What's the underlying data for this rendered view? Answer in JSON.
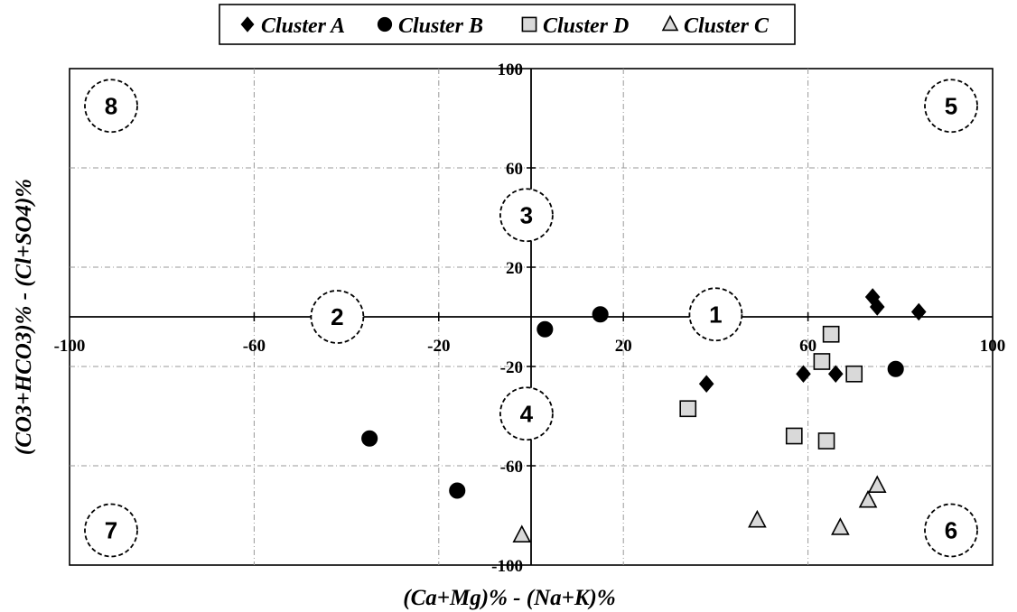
{
  "chart_data": {
    "type": "scatter",
    "xlabel": "(Ca+Mg)% - (Na+K)%",
    "ylabel": "(CO3+HCO3)% - (Cl+SO4)%",
    "xlim": [
      -100,
      100
    ],
    "ylim": [
      -100,
      100
    ],
    "x_ticks": [
      -100,
      -60,
      -20,
      20,
      60,
      100
    ],
    "y_ticks": [
      100,
      60,
      20,
      -20,
      -60,
      -100
    ],
    "grid": true,
    "legend_position": "top-center",
    "zones": [
      {
        "label": "1",
        "x": 40,
        "y": 1
      },
      {
        "label": "2",
        "x": -42,
        "y": 0
      },
      {
        "label": "3",
        "x": -1,
        "y": 41
      },
      {
        "label": "4",
        "x": -1,
        "y": -39
      },
      {
        "label": "5",
        "x": 91,
        "y": 85
      },
      {
        "label": "6",
        "x": 91,
        "y": -86
      },
      {
        "label": "7",
        "x": -91,
        "y": -86
      },
      {
        "label": "8",
        "x": -91,
        "y": 85
      }
    ],
    "series": [
      {
        "name": "Cluster A",
        "marker": "diamond",
        "color": "#000000",
        "points": [
          [
            74,
            8
          ],
          [
            75,
            4
          ],
          [
            84,
            2
          ],
          [
            38,
            -27
          ],
          [
            59,
            -23
          ],
          [
            66,
            -23
          ]
        ]
      },
      {
        "name": "Cluster B",
        "marker": "circle",
        "color": "#000000",
        "points": [
          [
            15,
            1
          ],
          [
            3,
            -5
          ],
          [
            -35,
            -49
          ],
          [
            -16,
            -70
          ],
          [
            79,
            -21
          ]
        ]
      },
      {
        "name": "Cluster D",
        "marker": "square",
        "color": "#d9d9d9",
        "points": [
          [
            65,
            -7
          ],
          [
            63,
            -18
          ],
          [
            70,
            -23
          ],
          [
            34,
            -37
          ],
          [
            57,
            -48
          ],
          [
            64,
            -50
          ]
        ]
      },
      {
        "name": "Cluster C",
        "marker": "triangle",
        "color": "#d9d9d9",
        "points": [
          [
            -2,
            -88
          ],
          [
            49,
            -82
          ],
          [
            67,
            -85
          ],
          [
            73,
            -74
          ],
          [
            75,
            -68
          ]
        ]
      }
    ]
  }
}
